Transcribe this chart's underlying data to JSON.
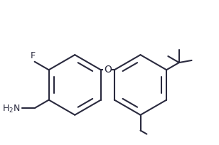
{
  "background": "#ffffff",
  "bond_color": "#2a2a3e",
  "text_color": "#2a2a3e",
  "line_width": 1.5,
  "font_size": 9,
  "fig_width": 3.08,
  "fig_height": 2.05,
  "dpi": 100,
  "r1cx": 0.32,
  "r1cy": 0.45,
  "r2cx": 0.68,
  "r2cy": 0.45,
  "ring_r": 0.165
}
